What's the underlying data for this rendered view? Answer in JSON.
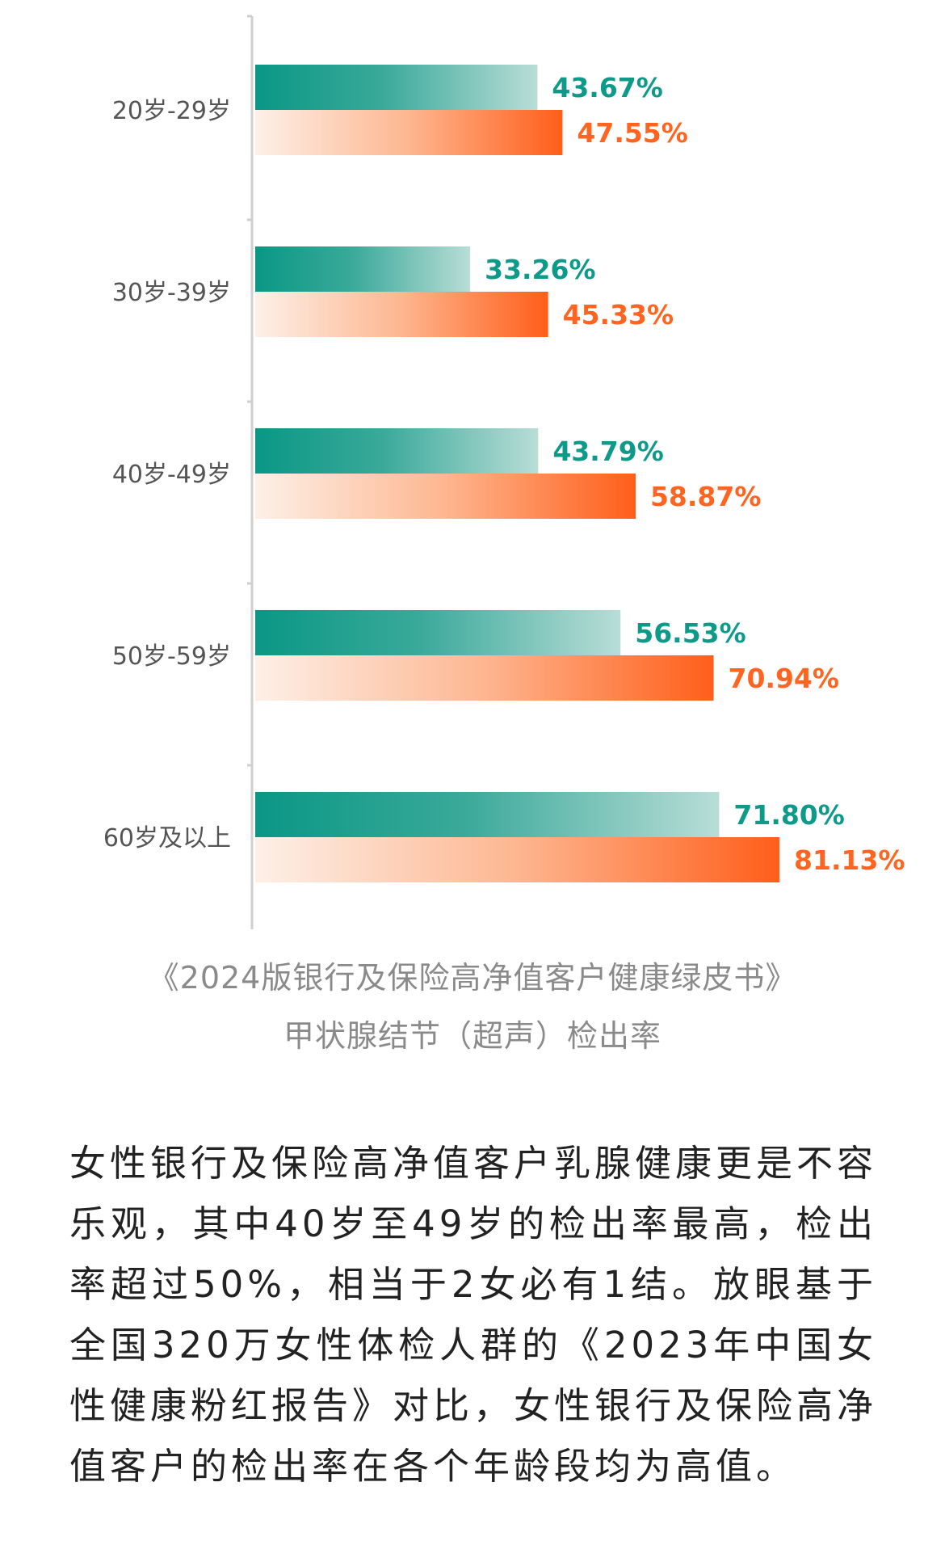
{
  "chart_data": {
    "type": "bar",
    "orientation": "horizontal",
    "categories": [
      "20岁-29岁",
      "30岁-39岁",
      "40岁-49岁",
      "50岁-59岁",
      "60岁及以上"
    ],
    "series": [
      {
        "values": [
          43.67,
          33.26,
          43.79,
          56.53,
          71.8
        ],
        "labels": [
          "43.67%",
          "33.26%",
          "43.79%",
          "56.53%",
          "71.80%"
        ],
        "color": "#0e9a88"
      },
      {
        "values": [
          47.55,
          45.33,
          58.87,
          70.94,
          81.13
        ],
        "labels": [
          "47.55%",
          "45.33%",
          "58.87%",
          "70.94%",
          "81.13%"
        ],
        "color": "#ff6420"
      }
    ],
    "xlim": [
      0,
      100
    ],
    "grid": false,
    "legend": "none"
  },
  "caption": {
    "line1": "《2024版银行及保险高净值客户健康绿皮书》",
    "line2": "甲状腺结节（超声）检出率"
  },
  "body_text": "女性银行及保险高净值客户乳腺健康更是不容乐观，其中40岁至49岁的检出率最高，检出率超过50%，相当于2女必有1结。放眼基于全国320万女性体检人群的《2023年中国女性健康粉红报告》对比，女性银行及保险高净值客户的检出率在各个年龄段均为高值。"
}
